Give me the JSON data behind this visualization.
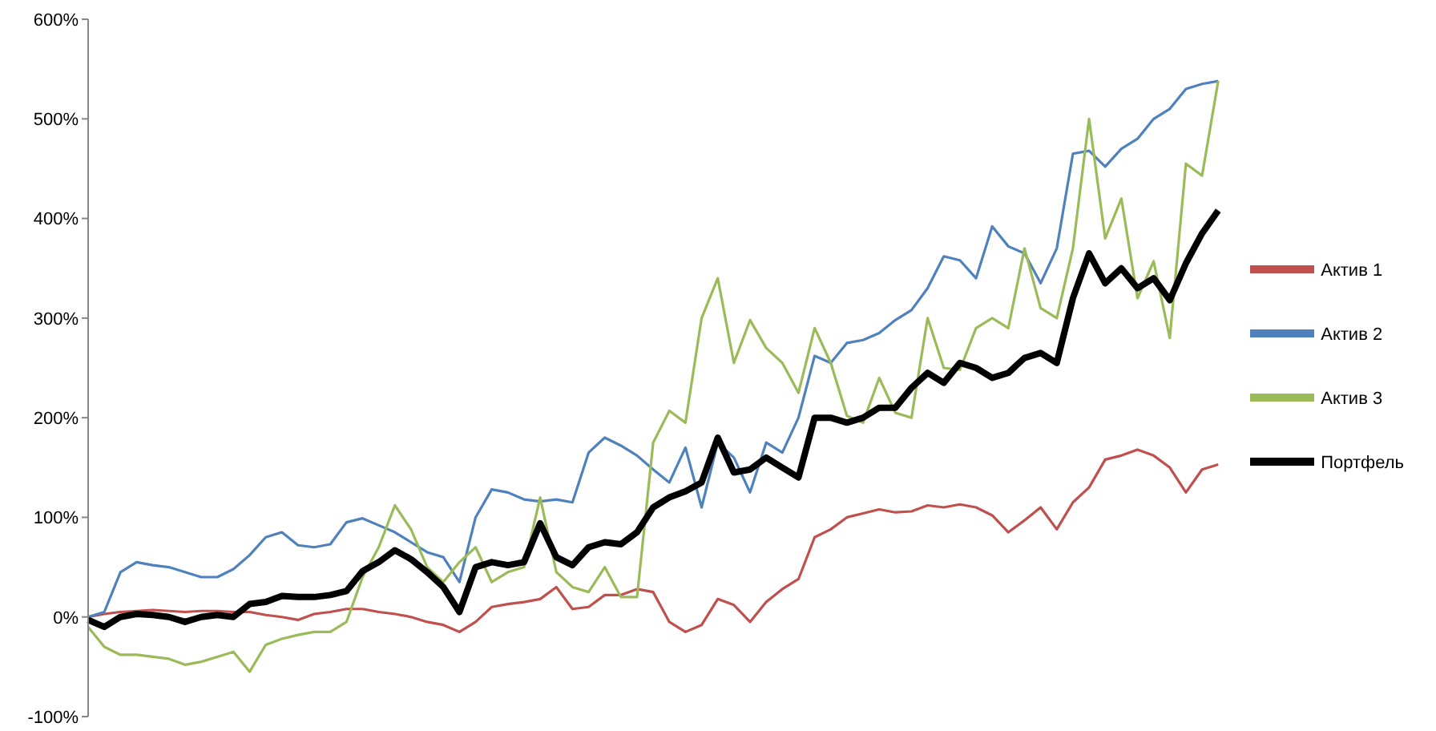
{
  "chart_data": {
    "type": "line",
    "categories": [
      null,
      null,
      null,
      null,
      null,
      null,
      null,
      null,
      null,
      null,
      null,
      null,
      null,
      null,
      null,
      null,
      null,
      null,
      null,
      null,
      null,
      null,
      null,
      null,
      null,
      null,
      null,
      null,
      null,
      null,
      null,
      null,
      null,
      null,
      null,
      null,
      null,
      null,
      null,
      null,
      null,
      null,
      null,
      null,
      null,
      null,
      null,
      null,
      null,
      null,
      null,
      null,
      null,
      null,
      null,
      null,
      null,
      null,
      null,
      null,
      null,
      null,
      null,
      null,
      null,
      null,
      null,
      null,
      null,
      null,
      null
    ],
    "series": [
      {
        "name": "Актив 1",
        "color": "#c0504d",
        "values": [
          0,
          3,
          5,
          6,
          7,
          6,
          5,
          6,
          6,
          5,
          5,
          2,
          0,
          -3,
          3,
          5,
          8,
          8,
          5,
          3,
          0,
          -5,
          -8,
          -15,
          -5,
          10,
          13,
          15,
          18,
          30,
          8,
          10,
          22,
          22,
          28,
          25,
          -5,
          -15,
          -8,
          18,
          12,
          -5,
          15,
          28,
          38,
          80,
          88,
          100,
          104,
          108,
          105,
          106,
          112,
          110,
          113,
          110,
          102,
          85,
          97,
          110,
          88,
          115,
          130,
          158,
          162,
          168,
          162,
          150,
          125,
          148,
          153
        ]
      },
      {
        "name": "Актив 2",
        "color": "#4f81bd",
        "values": [
          0,
          5,
          45,
          55,
          52,
          50,
          45,
          40,
          40,
          48,
          62,
          80,
          85,
          72,
          70,
          73,
          95,
          99,
          92,
          85,
          75,
          65,
          60,
          35,
          100,
          128,
          125,
          118,
          116,
          118,
          115,
          165,
          180,
          172,
          162,
          148,
          135,
          170,
          110,
          175,
          160,
          125,
          175,
          165,
          200,
          262,
          255,
          275,
          278,
          285,
          298,
          308,
          330,
          362,
          358,
          340,
          392,
          372,
          365,
          335,
          370,
          465,
          468,
          452,
          470,
          480,
          500,
          510,
          530,
          535,
          538
        ]
      },
      {
        "name": "Актив 3",
        "color": "#9bbb59",
        "values": [
          -10,
          -30,
          -38,
          -38,
          -40,
          -42,
          -48,
          -45,
          -40,
          -35,
          -55,
          -28,
          -22,
          -18,
          -15,
          -15,
          -5,
          40,
          70,
          112,
          88,
          50,
          35,
          55,
          70,
          35,
          45,
          50,
          120,
          45,
          30,
          25,
          50,
          20,
          20,
          175,
          207,
          195,
          300,
          340,
          255,
          298,
          270,
          255,
          225,
          290,
          255,
          202,
          195,
          240,
          205,
          200,
          300,
          250,
          248,
          290,
          300,
          290,
          370,
          310,
          300,
          370,
          500,
          380,
          420,
          320,
          357,
          280,
          455,
          443,
          538
        ]
      },
      {
        "name": "Портфель",
        "color": "#000000",
        "values": [
          -3,
          -10,
          0,
          3,
          2,
          0,
          -5,
          0,
          2,
          0,
          13,
          15,
          21,
          20,
          20,
          22,
          26,
          46,
          55,
          67,
          58,
          45,
          30,
          5,
          50,
          55,
          52,
          55,
          94,
          60,
          52,
          70,
          75,
          73,
          85,
          110,
          120,
          126,
          135,
          180,
          145,
          148,
          160,
          150,
          140,
          200,
          200,
          195,
          200,
          210,
          210,
          230,
          245,
          235,
          255,
          250,
          240,
          245,
          260,
          265,
          255,
          320,
          365,
          335,
          350,
          330,
          340,
          318,
          355,
          385,
          408
        ]
      }
    ],
    "ylim": [
      -100,
      600
    ],
    "yticks": [
      {
        "value": -100,
        "label": "-100%"
      },
      {
        "value": 0,
        "label": "0%"
      },
      {
        "value": 100,
        "label": "100%"
      },
      {
        "value": 200,
        "label": "200%"
      },
      {
        "value": 300,
        "label": "300%"
      },
      {
        "value": 400,
        "label": "400%"
      },
      {
        "value": 500,
        "label": "500%"
      },
      {
        "value": 600,
        "label": "600%"
      }
    ],
    "tick_labels": "y",
    "grid": false,
    "legend": "right",
    "marker": "none",
    "line_style": "solid"
  }
}
